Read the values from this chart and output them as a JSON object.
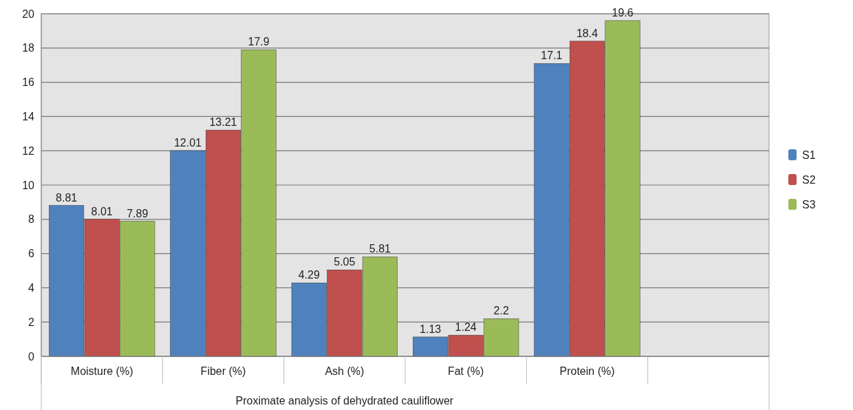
{
  "chart_data": {
    "type": "bar",
    "xlabel": "Proximate analysis of dehydrated cauliflower",
    "categories": [
      "Moisture (%)",
      "Fiber (%)",
      "Ash (%)",
      "Fat (%)",
      "Protein (%)",
      null
    ],
    "series": [
      {
        "name": "S1",
        "color": "#4f81bd",
        "values": [
          8.81,
          12.01,
          4.29,
          1.13,
          17.1,
          null
        ]
      },
      {
        "name": "S2",
        "color": "#c0504d",
        "values": [
          8.01,
          13.21,
          5.05,
          1.24,
          18.4,
          null
        ]
      },
      {
        "name": "S3",
        "color": "#9bbb59",
        "values": [
          7.89,
          17.9,
          5.81,
          2.2,
          19.6,
          null
        ]
      }
    ],
    "ylim": [
      0,
      20
    ],
    "yticks": [
      0,
      2,
      4,
      6,
      8,
      10,
      12,
      14,
      16,
      18,
      20
    ],
    "grid": "y",
    "legend": "right",
    "data_labels": true
  }
}
